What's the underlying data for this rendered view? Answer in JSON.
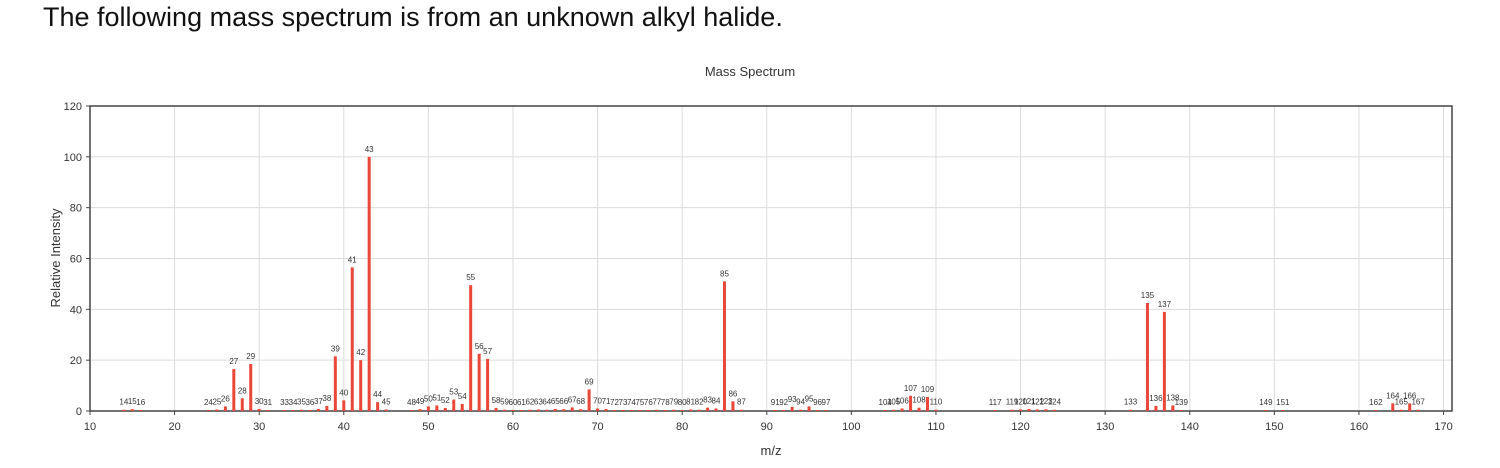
{
  "question": {
    "text": "The following mass spectrum is from an unknown alkyl halide."
  },
  "colors": {
    "bar": "#e8473a",
    "grid": "#dcdcdc",
    "axis": "#444444",
    "text": "#333333"
  },
  "chart_data": {
    "type": "bar",
    "title": "Mass Spectrum",
    "xlabel": "m/z",
    "ylabel": "Relative Intensity",
    "xlim": [
      10,
      171
    ],
    "ylim": [
      0,
      120
    ],
    "xticks": [
      10,
      20,
      30,
      40,
      50,
      60,
      70,
      80,
      90,
      100,
      110,
      120,
      130,
      140,
      150,
      160,
      170
    ],
    "yticks": [
      0,
      20,
      40,
      60,
      80,
      100,
      120
    ],
    "grid": true,
    "legend": "none",
    "peaks": [
      {
        "mz": 14,
        "intensity": 0.5
      },
      {
        "mz": 15,
        "intensity": 0.7
      },
      {
        "mz": 16,
        "intensity": 0.4
      },
      {
        "mz": 24,
        "intensity": 0.3
      },
      {
        "mz": 25,
        "intensity": 0.6
      },
      {
        "mz": 26,
        "intensity": 1.8
      },
      {
        "mz": 27,
        "intensity": 16.5
      },
      {
        "mz": 28,
        "intensity": 5.0
      },
      {
        "mz": 29,
        "intensity": 18.5
      },
      {
        "mz": 30,
        "intensity": 0.8
      },
      {
        "mz": 31,
        "intensity": 0.4
      },
      {
        "mz": 33,
        "intensity": 0.3
      },
      {
        "mz": 34,
        "intensity": 0.3
      },
      {
        "mz": 35,
        "intensity": 0.5
      },
      {
        "mz": 36,
        "intensity": 0.4
      },
      {
        "mz": 37,
        "intensity": 0.8
      },
      {
        "mz": 38,
        "intensity": 2.0
      },
      {
        "mz": 39,
        "intensity": 21.5
      },
      {
        "mz": 40,
        "intensity": 4.2
      },
      {
        "mz": 41,
        "intensity": 56.5
      },
      {
        "mz": 42,
        "intensity": 20.0
      },
      {
        "mz": 43,
        "intensity": 100
      },
      {
        "mz": 44,
        "intensity": 3.5
      },
      {
        "mz": 45,
        "intensity": 0.6
      },
      {
        "mz": 48,
        "intensity": 0.4
      },
      {
        "mz": 49,
        "intensity": 0.7
      },
      {
        "mz": 50,
        "intensity": 1.8
      },
      {
        "mz": 51,
        "intensity": 2.2
      },
      {
        "mz": 52,
        "intensity": 1.2
      },
      {
        "mz": 53,
        "intensity": 4.5
      },
      {
        "mz": 54,
        "intensity": 2.8
      },
      {
        "mz": 55,
        "intensity": 49.5
      },
      {
        "mz": 56,
        "intensity": 22.5
      },
      {
        "mz": 57,
        "intensity": 20.5
      },
      {
        "mz": 58,
        "intensity": 1.2
      },
      {
        "mz": 59,
        "intensity": 0.5
      },
      {
        "mz": 60,
        "intensity": 0.4
      },
      {
        "mz": 61,
        "intensity": 0.4
      },
      {
        "mz": 62,
        "intensity": 0.5
      },
      {
        "mz": 63,
        "intensity": 0.6
      },
      {
        "mz": 64,
        "intensity": 0.5
      },
      {
        "mz": 65,
        "intensity": 0.8
      },
      {
        "mz": 66,
        "intensity": 0.7
      },
      {
        "mz": 67,
        "intensity": 1.4
      },
      {
        "mz": 68,
        "intensity": 0.7
      },
      {
        "mz": 69,
        "intensity": 8.5
      },
      {
        "mz": 70,
        "intensity": 1.0
      },
      {
        "mz": 71,
        "intensity": 0.8
      },
      {
        "mz": 72,
        "intensity": 0.4
      },
      {
        "mz": 73,
        "intensity": 0.3
      },
      {
        "mz": 74,
        "intensity": 0.3
      },
      {
        "mz": 75,
        "intensity": 0.4
      },
      {
        "mz": 76,
        "intensity": 0.3
      },
      {
        "mz": 77,
        "intensity": 0.5
      },
      {
        "mz": 78,
        "intensity": 0.3
      },
      {
        "mz": 79,
        "intensity": 0.5
      },
      {
        "mz": 80,
        "intensity": 0.4
      },
      {
        "mz": 81,
        "intensity": 0.6
      },
      {
        "mz": 82,
        "intensity": 0.5
      },
      {
        "mz": 83,
        "intensity": 1.3
      },
      {
        "mz": 84,
        "intensity": 1.0
      },
      {
        "mz": 85,
        "intensity": 51.0
      },
      {
        "mz": 86,
        "intensity": 3.8
      },
      {
        "mz": 87,
        "intensity": 0.5
      },
      {
        "mz": 91,
        "intensity": 0.4
      },
      {
        "mz": 92,
        "intensity": 0.4
      },
      {
        "mz": 93,
        "intensity": 1.6
      },
      {
        "mz": 94,
        "intensity": 0.5
      },
      {
        "mz": 95,
        "intensity": 1.8
      },
      {
        "mz": 96,
        "intensity": 0.4
      },
      {
        "mz": 97,
        "intensity": 0.4
      },
      {
        "mz": 104,
        "intensity": 0.4
      },
      {
        "mz": 105,
        "intensity": 0.5
      },
      {
        "mz": 106,
        "intensity": 1.0
      },
      {
        "mz": 107,
        "intensity": 6.0
      },
      {
        "mz": 108,
        "intensity": 1.3
      },
      {
        "mz": 109,
        "intensity": 5.5
      },
      {
        "mz": 110,
        "intensity": 0.5
      },
      {
        "mz": 117,
        "intensity": 0.4
      },
      {
        "mz": 119,
        "intensity": 0.5
      },
      {
        "mz": 120,
        "intensity": 0.6
      },
      {
        "mz": 121,
        "intensity": 0.8
      },
      {
        "mz": 122,
        "intensity": 0.6
      },
      {
        "mz": 123,
        "intensity": 0.7
      },
      {
        "mz": 124,
        "intensity": 0.5
      },
      {
        "mz": 133,
        "intensity": 0.5
      },
      {
        "mz": 135,
        "intensity": 42.5
      },
      {
        "mz": 136,
        "intensity": 2.0
      },
      {
        "mz": 137,
        "intensity": 39.0
      },
      {
        "mz": 138,
        "intensity": 2.2
      },
      {
        "mz": 139,
        "intensity": 0.4
      },
      {
        "mz": 149,
        "intensity": 0.4
      },
      {
        "mz": 151,
        "intensity": 0.4
      },
      {
        "mz": 162,
        "intensity": 0.4
      },
      {
        "mz": 164,
        "intensity": 3.0
      },
      {
        "mz": 165,
        "intensity": 0.5
      },
      {
        "mz": 166,
        "intensity": 3.0
      },
      {
        "mz": 167,
        "intensity": 0.5
      }
    ]
  }
}
